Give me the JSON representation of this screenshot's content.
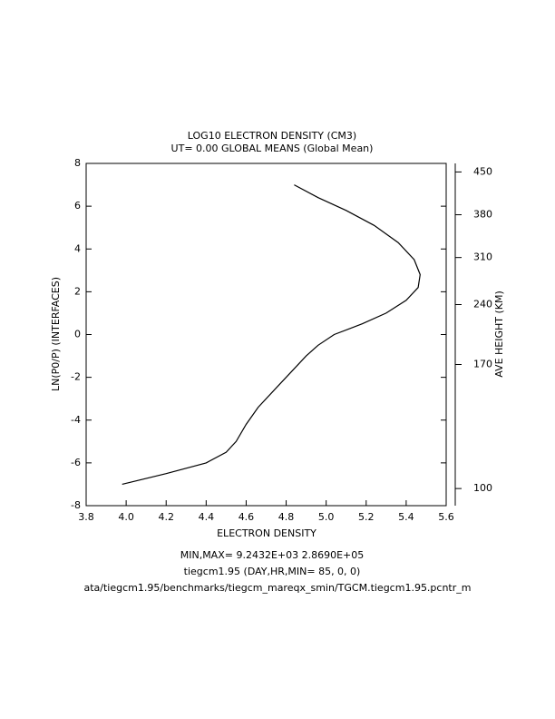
{
  "chart_data": {
    "type": "line",
    "title": "LOG10 ELECTRON DENSITY (CM3)",
    "subtitle": "UT= 0.00 GLOBAL MEANS (Global Mean)",
    "x_label": "ELECTRON DENSITY",
    "y_label": "LN(P0/P) (INTERFACES)",
    "xlim": [
      3.8,
      5.6
    ],
    "xticks": [
      3.8,
      {
        "value": 4,
        "label": "4.0"
      },
      4.2,
      4.4,
      4.6,
      4.8,
      {
        "value": 5,
        "label": "5.0"
      },
      5.2,
      5.4,
      5.6
    ],
    "ylim": [
      -8,
      8
    ],
    "yticks": [
      8,
      6,
      4,
      2,
      0,
      -2,
      -4,
      -6,
      -8
    ],
    "height_axis": {
      "label": "AVE HEIGHT (KM)",
      "ticks": [
        450,
        380,
        310,
        240,
        170,
        100
      ],
      "zp": [
        7.6,
        5.6,
        3.6,
        1.4,
        -1.4,
        -7.2
      ]
    },
    "color": "#000000",
    "x": [
      4.84,
      4.96,
      5.1,
      5.24,
      5.36,
      5.44,
      5.47,
      5.46,
      5.4,
      5.3,
      5.18,
      5.04,
      4.96,
      4.9,
      4.84,
      4.77,
      4.66,
      4.6,
      4.55,
      4.5,
      4.4,
      4.2,
      3.98
    ],
    "y": [
      7,
      6.4,
      5.8,
      5.1,
      4.3,
      3.5,
      2.8,
      2.2,
      1.6,
      1.0,
      0.5,
      0,
      -0.5,
      -1.0,
      -1.6,
      -2.3,
      -3.4,
      -4.2,
      -5,
      -5.5,
      -6,
      -6.5,
      -7
    ],
    "footer": [
      "MIN,MAX=  9.2432E+03  2.8690E+05",
      "tiegcm1.95 (DAY,HR,MIN= 85, 0, 0)",
      "ata/tiegcm1.95/benchmarks/tiegcm_mareqx_smin/TGCM.tiegcm1.95.pcntr_m"
    ]
  }
}
